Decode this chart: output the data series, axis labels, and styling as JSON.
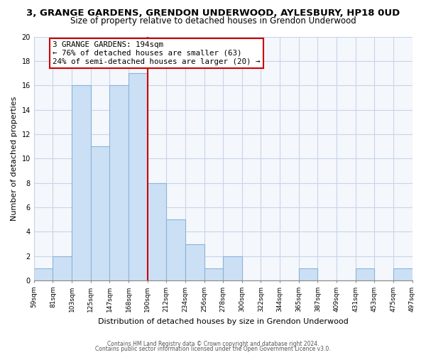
{
  "title": "3, GRANGE GARDENS, GRENDON UNDERWOOD, AYLESBURY, HP18 0UD",
  "subtitle": "Size of property relative to detached houses in Grendon Underwood",
  "xlabel": "Distribution of detached houses by size in Grendon Underwood",
  "ylabel": "Number of detached properties",
  "bar_values": [
    1,
    2,
    16,
    11,
    16,
    17,
    8,
    5,
    3,
    1,
    2,
    0,
    0,
    0,
    1,
    0,
    0,
    1,
    0,
    1
  ],
  "bin_labels": [
    "59sqm",
    "81sqm",
    "103sqm",
    "125sqm",
    "147sqm",
    "168sqm",
    "190sqm",
    "212sqm",
    "234sqm",
    "256sqm",
    "278sqm",
    "300sqm",
    "322sqm",
    "344sqm",
    "365sqm",
    "387sqm",
    "409sqm",
    "431sqm",
    "453sqm",
    "475sqm",
    "497sqm"
  ],
  "bar_color": "#cce0f5",
  "bar_edge_color": "#8ab4d8",
  "vline_color": "#cc0000",
  "vline_x_index": 6,
  "annotation_text": "3 GRANGE GARDENS: 194sqm\n← 76% of detached houses are smaller (63)\n24% of semi-detached houses are larger (20) →",
  "annotation_box_color": "#ffffff",
  "annotation_box_edge": "#cc0000",
  "ylim": [
    0,
    20
  ],
  "yticks": [
    0,
    2,
    4,
    6,
    8,
    10,
    12,
    14,
    16,
    18,
    20
  ],
  "grid_color": "#c8d4e8",
  "background_color": "#ffffff",
  "plot_bg_color": "#f4f7fc",
  "footer1": "Contains HM Land Registry data © Crown copyright and database right 2024.",
  "footer2": "Contains public sector information licensed under the Open Government Licence v3.0.",
  "title_fontsize": 9.5,
  "subtitle_fontsize": 8.5,
  "tick_fontsize": 6.5,
  "ylabel_fontsize": 8,
  "xlabel_fontsize": 8
}
